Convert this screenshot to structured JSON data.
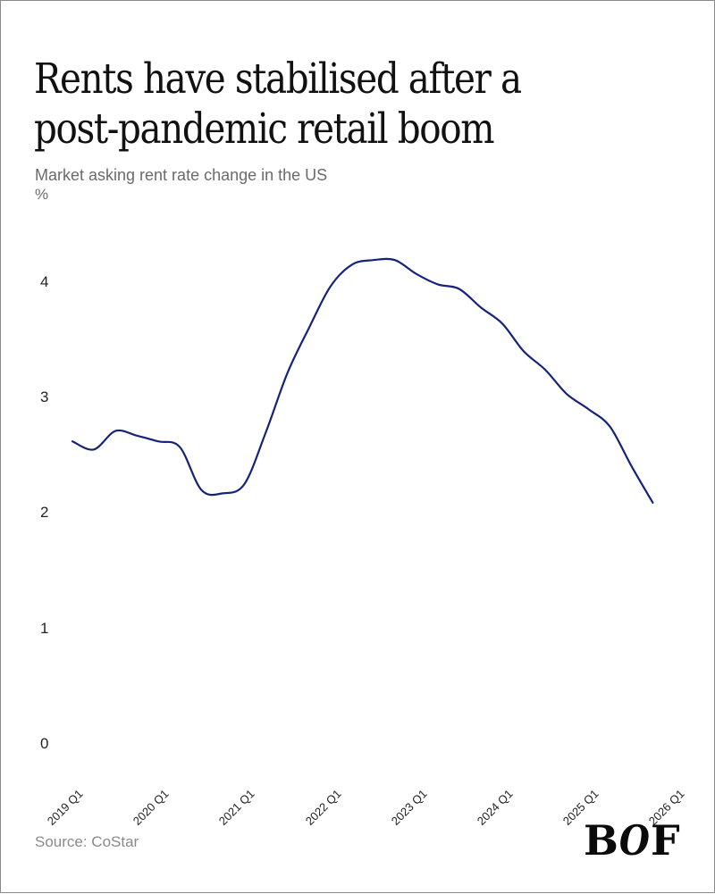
{
  "header": {
    "title_line1": "Rents have stabilised after a",
    "title_line2": "post-pandemic retail boom",
    "subtitle": "Market asking rent rate change in the US",
    "unit": "%"
  },
  "footer": {
    "source": "Source: CoStar",
    "logo_b": "B",
    "logo_o": "O",
    "logo_f": "F"
  },
  "colors": {
    "line": "#16237a",
    "title": "#111111",
    "subtitle": "#6b6b6b",
    "source": "#8a8a8a"
  },
  "axes": {
    "y_ticks": [
      "0",
      "1",
      "2",
      "3",
      "4"
    ],
    "x_ticks": [
      "2019 Q1",
      "2020 Q1",
      "2021 Q1",
      "2022 Q1",
      "2023 Q1",
      "2024 Q1",
      "2025 Q1",
      "2026 Q1"
    ]
  },
  "chart_data": {
    "type": "line",
    "title": "Rents have stabilised after a post-pandemic retail boom",
    "subtitle": "Market asking rent rate change in the US",
    "xlabel": "",
    "ylabel": "%",
    "ylim": [
      0,
      4.3
    ],
    "yticks": [
      0,
      1,
      2,
      3,
      4
    ],
    "xticks": [
      "2019 Q1",
      "2020 Q1",
      "2021 Q1",
      "2022 Q1",
      "2023 Q1",
      "2024 Q1",
      "2025 Q1",
      "2026 Q1"
    ],
    "grid": false,
    "legend": null,
    "source": "CoStar",
    "x": [
      "2019 Q1",
      "2019 Q2",
      "2019 Q3",
      "2019 Q4",
      "2020 Q1",
      "2020 Q2",
      "2020 Q3",
      "2020 Q4",
      "2021 Q1",
      "2021 Q2",
      "2021 Q3",
      "2021 Q4",
      "2022 Q1",
      "2022 Q2",
      "2022 Q3",
      "2022 Q4",
      "2023 Q1",
      "2023 Q2",
      "2023 Q3",
      "2023 Q4",
      "2024 Q1",
      "2024 Q2",
      "2024 Q3",
      "2024 Q4",
      "2025 Q1",
      "2025 Q2",
      "2025 Q3",
      "2025 Q4"
    ],
    "series": [
      {
        "name": "Market asking rent rate change",
        "values": [
          2.62,
          2.55,
          2.71,
          2.67,
          2.62,
          2.57,
          2.2,
          2.17,
          2.25,
          2.7,
          3.21,
          3.6,
          3.96,
          4.15,
          4.19,
          4.19,
          4.07,
          3.98,
          3.94,
          3.78,
          3.64,
          3.4,
          3.24,
          3.03,
          2.9,
          2.75,
          2.41,
          2.09
        ]
      }
    ]
  }
}
